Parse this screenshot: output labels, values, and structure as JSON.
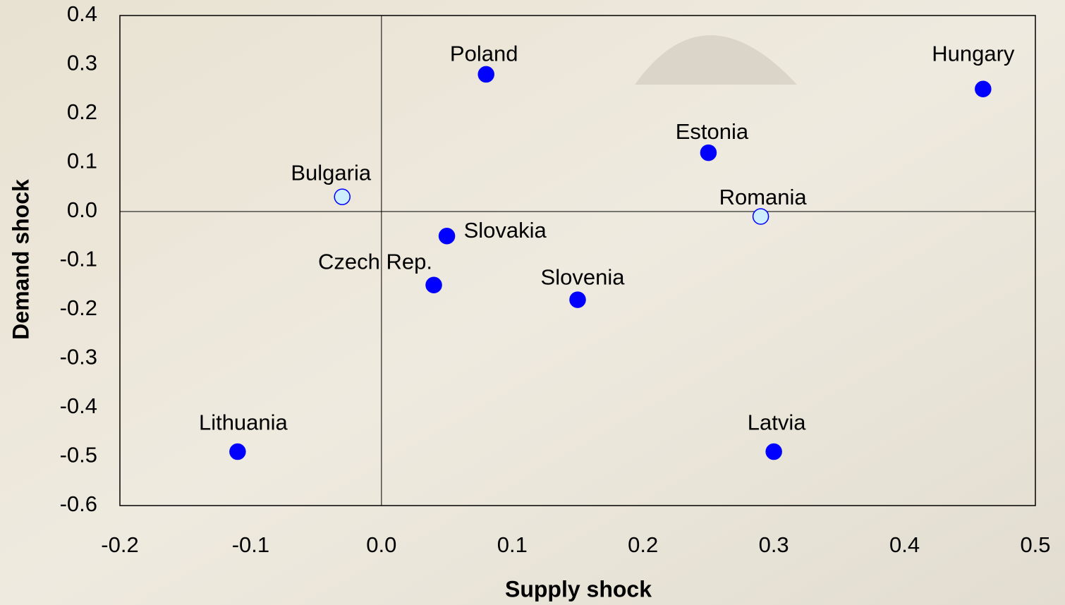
{
  "chart_data": {
    "type": "scatter",
    "x_label": "Supply shock",
    "y_label": "Demand shock",
    "xlim": [
      -0.2,
      0.5
    ],
    "xticks": [
      -0.2,
      -0.1,
      {
        "value": 0,
        "label": "0.0"
      },
      0.1,
      0.2,
      0.3,
      0.4,
      0.5
    ],
    "ylim": [
      -0.6,
      0.4
    ],
    "yticks": [
      -0.6,
      -0.5,
      -0.4,
      -0.3,
      -0.2,
      -0.1,
      {
        "value": 0,
        "label": "0.0"
      },
      0.1,
      0.2,
      0.3,
      0.4
    ],
    "series": [
      {
        "color": "#0000ff",
        "edge": "#0000ff",
        "labels": [
          "Poland",
          "Hungary",
          "Estonia",
          "Slovakia",
          "Czech Rep.",
          "Slovenia",
          "Lithuania",
          "Latvia"
        ],
        "x": [
          0.08,
          0.46,
          0.25,
          0.05,
          0.04,
          0.15,
          -0.11,
          0.3
        ],
        "values": [
          0.28,
          0.25,
          0.12,
          -0.05,
          -0.15,
          -0.18,
          -0.49,
          -0.49
        ]
      },
      {
        "color": "#cceeff",
        "edge": "#0000ff",
        "labels": [
          "Bulgaria",
          "Romania"
        ],
        "x": [
          -0.03,
          0.29
        ],
        "values": [
          0.03,
          -0.01
        ]
      }
    ]
  }
}
